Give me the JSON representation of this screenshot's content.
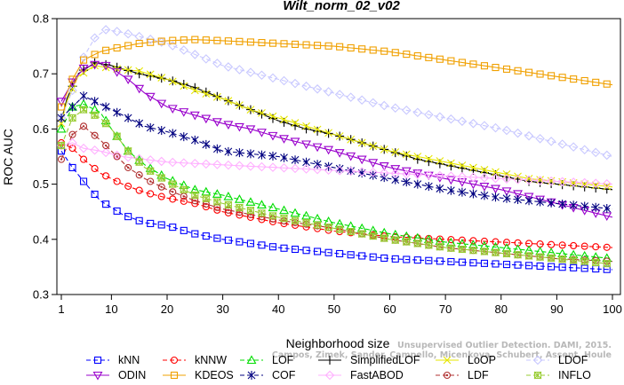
{
  "chart_data": {
    "type": "line",
    "title": "Wilt_norm_02_v02",
    "xlabel": "Neighborhood size",
    "ylabel": "ROC AUC",
    "xlim": [
      1,
      100
    ],
    "ylim": [
      0.3,
      0.8
    ],
    "xticks": [
      1,
      10,
      20,
      30,
      40,
      50,
      60,
      70,
      80,
      90,
      100
    ],
    "yticks": [
      0.3,
      0.4,
      0.5,
      0.6,
      0.7,
      0.8
    ],
    "grid": false,
    "legend_position": "bottom",
    "series": [
      {
        "name": "kNN",
        "color": "#0000ff",
        "marker": "square",
        "dash": "dashed",
        "points": [
          [
            1,
            0.56
          ],
          [
            3,
            0.53
          ],
          [
            5,
            0.505
          ],
          [
            8,
            0.47
          ],
          [
            12,
            0.445
          ],
          [
            16,
            0.43
          ],
          [
            20,
            0.425
          ],
          [
            25,
            0.41
          ],
          [
            30,
            0.4
          ],
          [
            40,
            0.385
          ],
          [
            50,
            0.375
          ],
          [
            60,
            0.365
          ],
          [
            70,
            0.36
          ],
          [
            80,
            0.355
          ],
          [
            90,
            0.35
          ],
          [
            100,
            0.345
          ]
        ]
      },
      {
        "name": "kNNW",
        "color": "#ff0000",
        "marker": "circle",
        "dash": "dashed",
        "points": [
          [
            1,
            0.575
          ],
          [
            3,
            0.565
          ],
          [
            5,
            0.545
          ],
          [
            8,
            0.52
          ],
          [
            12,
            0.5
          ],
          [
            16,
            0.485
          ],
          [
            20,
            0.475
          ],
          [
            25,
            0.465
          ],
          [
            30,
            0.45
          ],
          [
            40,
            0.43
          ],
          [
            50,
            0.415
          ],
          [
            60,
            0.405
          ],
          [
            70,
            0.4
          ],
          [
            80,
            0.395
          ],
          [
            90,
            0.39
          ],
          [
            100,
            0.385
          ]
        ]
      },
      {
        "name": "LOF",
        "color": "#00dd00",
        "marker": "triangle-up",
        "dash": "dashed",
        "points": [
          [
            1,
            0.6
          ],
          [
            3,
            0.64
          ],
          [
            5,
            0.645
          ],
          [
            8,
            0.63
          ],
          [
            10,
            0.6
          ],
          [
            13,
            0.56
          ],
          [
            16,
            0.535
          ],
          [
            20,
            0.51
          ],
          [
            25,
            0.49
          ],
          [
            30,
            0.48
          ],
          [
            40,
            0.455
          ],
          [
            50,
            0.43
          ],
          [
            60,
            0.41
          ],
          [
            70,
            0.395
          ],
          [
            80,
            0.385
          ],
          [
            90,
            0.375
          ],
          [
            100,
            0.365
          ]
        ]
      },
      {
        "name": "SimplifiedLOF",
        "color": "#000000",
        "marker": "plus",
        "dash": "solid",
        "points": [
          [
            1,
            0.615
          ],
          [
            2,
            0.655
          ],
          [
            4,
            0.7
          ],
          [
            7,
            0.72
          ],
          [
            10,
            0.715
          ],
          [
            15,
            0.7
          ],
          [
            20,
            0.69
          ],
          [
            25,
            0.675
          ],
          [
            30,
            0.655
          ],
          [
            35,
            0.635
          ],
          [
            40,
            0.615
          ],
          [
            45,
            0.6
          ],
          [
            50,
            0.59
          ],
          [
            55,
            0.575
          ],
          [
            60,
            0.56
          ],
          [
            65,
            0.545
          ],
          [
            70,
            0.535
          ],
          [
            75,
            0.525
          ],
          [
            80,
            0.515
          ],
          [
            85,
            0.505
          ],
          [
            90,
            0.5
          ],
          [
            95,
            0.495
          ],
          [
            100,
            0.49
          ]
        ]
      },
      {
        "name": "LoOP",
        "color": "#e6e600",
        "marker": "x",
        "dash": "solid",
        "points": [
          [
            1,
            0.61
          ],
          [
            2,
            0.65
          ],
          [
            4,
            0.695
          ],
          [
            7,
            0.715
          ],
          [
            10,
            0.71
          ],
          [
            15,
            0.705
          ],
          [
            20,
            0.69
          ],
          [
            25,
            0.67
          ],
          [
            30,
            0.655
          ],
          [
            35,
            0.635
          ],
          [
            40,
            0.62
          ],
          [
            45,
            0.605
          ],
          [
            50,
            0.59
          ],
          [
            55,
            0.575
          ],
          [
            60,
            0.56
          ],
          [
            65,
            0.55
          ],
          [
            70,
            0.54
          ],
          [
            75,
            0.53
          ],
          [
            80,
            0.52
          ],
          [
            85,
            0.51
          ],
          [
            90,
            0.505
          ],
          [
            95,
            0.5
          ],
          [
            100,
            0.495
          ]
        ]
      },
      {
        "name": "LDOF",
        "color": "#c8c8ff",
        "marker": "diamond",
        "dash": "dashed",
        "points": [
          [
            1,
            0.62
          ],
          [
            3,
            0.67
          ],
          [
            5,
            0.73
          ],
          [
            7,
            0.765
          ],
          [
            9,
            0.78
          ],
          [
            12,
            0.775
          ],
          [
            16,
            0.765
          ],
          [
            20,
            0.755
          ],
          [
            25,
            0.735
          ],
          [
            30,
            0.715
          ],
          [
            40,
            0.69
          ],
          [
            50,
            0.665
          ],
          [
            60,
            0.64
          ],
          [
            70,
            0.62
          ],
          [
            80,
            0.6
          ],
          [
            90,
            0.575
          ],
          [
            100,
            0.55
          ]
        ]
      },
      {
        "name": "ODIN",
        "color": "#9900cc",
        "marker": "triangle-down",
        "dash": "solid",
        "points": [
          [
            1,
            0.65
          ],
          [
            3,
            0.685
          ],
          [
            5,
            0.71
          ],
          [
            8,
            0.72
          ],
          [
            10,
            0.71
          ],
          [
            13,
            0.69
          ],
          [
            16,
            0.665
          ],
          [
            20,
            0.64
          ],
          [
            25,
            0.625
          ],
          [
            30,
            0.61
          ],
          [
            35,
            0.6
          ],
          [
            40,
            0.585
          ],
          [
            50,
            0.56
          ],
          [
            60,
            0.53
          ],
          [
            70,
            0.51
          ],
          [
            80,
            0.49
          ],
          [
            90,
            0.465
          ],
          [
            100,
            0.44
          ]
        ]
      },
      {
        "name": "KDEOS",
        "color": "#f0a000",
        "marker": "square",
        "dash": "solid",
        "points": [
          [
            1,
            0.64
          ],
          [
            3,
            0.69
          ],
          [
            5,
            0.725
          ],
          [
            8,
            0.74
          ],
          [
            10,
            0.745
          ],
          [
            15,
            0.755
          ],
          [
            20,
            0.76
          ],
          [
            25,
            0.762
          ],
          [
            30,
            0.76
          ],
          [
            40,
            0.755
          ],
          [
            50,
            0.75
          ],
          [
            60,
            0.74
          ],
          [
            70,
            0.725
          ],
          [
            80,
            0.71
          ],
          [
            90,
            0.695
          ],
          [
            100,
            0.68
          ]
        ]
      },
      {
        "name": "COF",
        "color": "#000080",
        "marker": "asterisk",
        "dash": "dashed",
        "points": [
          [
            1,
            0.62
          ],
          [
            3,
            0.64
          ],
          [
            5,
            0.66
          ],
          [
            8,
            0.645
          ],
          [
            12,
            0.625
          ],
          [
            16,
            0.605
          ],
          [
            20,
            0.595
          ],
          [
            25,
            0.58
          ],
          [
            30,
            0.56
          ],
          [
            40,
            0.55
          ],
          [
            50,
            0.53
          ],
          [
            60,
            0.51
          ],
          [
            70,
            0.49
          ],
          [
            80,
            0.475
          ],
          [
            90,
            0.465
          ],
          [
            100,
            0.455
          ]
        ]
      },
      {
        "name": "FastABOD",
        "color": "#ffb0ff",
        "marker": "diamond",
        "dash": "solid",
        "points": [
          [
            1,
            0.57
          ],
          [
            3,
            0.575
          ],
          [
            5,
            0.565
          ],
          [
            8,
            0.56
          ],
          [
            12,
            0.55
          ],
          [
            16,
            0.545
          ],
          [
            20,
            0.54
          ],
          [
            30,
            0.535
          ],
          [
            40,
            0.53
          ],
          [
            50,
            0.525
          ],
          [
            60,
            0.52
          ],
          [
            70,
            0.515
          ],
          [
            80,
            0.51
          ],
          [
            90,
            0.505
          ],
          [
            100,
            0.5
          ]
        ]
      },
      {
        "name": "LDF",
        "color": "#b03030",
        "marker": "circle-dot",
        "dash": "dashed",
        "points": [
          [
            1,
            0.545
          ],
          [
            3,
            0.59
          ],
          [
            5,
            0.605
          ],
          [
            8,
            0.58
          ],
          [
            10,
            0.56
          ],
          [
            13,
            0.53
          ],
          [
            16,
            0.51
          ],
          [
            20,
            0.49
          ],
          [
            25,
            0.47
          ],
          [
            30,
            0.455
          ],
          [
            40,
            0.435
          ],
          [
            50,
            0.42
          ],
          [
            60,
            0.4
          ],
          [
            70,
            0.385
          ],
          [
            80,
            0.375
          ],
          [
            90,
            0.365
          ],
          [
            100,
            0.36
          ]
        ]
      },
      {
        "name": "INFLO",
        "color": "#99cc33",
        "marker": "star-box",
        "dash": "dashed",
        "points": [
          [
            1,
            0.57
          ],
          [
            3,
            0.62
          ],
          [
            5,
            0.635
          ],
          [
            8,
            0.62
          ],
          [
            10,
            0.6
          ],
          [
            13,
            0.56
          ],
          [
            16,
            0.53
          ],
          [
            20,
            0.505
          ],
          [
            25,
            0.48
          ],
          [
            30,
            0.465
          ],
          [
            40,
            0.44
          ],
          [
            50,
            0.42
          ],
          [
            60,
            0.4
          ],
          [
            70,
            0.385
          ],
          [
            80,
            0.375
          ],
          [
            90,
            0.365
          ],
          [
            100,
            0.355
          ]
        ]
      }
    ],
    "legend_rows": [
      [
        "kNN",
        "kNNW",
        "LOF",
        "SimplifiedLOF",
        "LoOP",
        "LDOF"
      ],
      [
        "ODIN",
        "KDEOS",
        "COF",
        "FastABOD",
        "LDF",
        "INFLO"
      ]
    ]
  },
  "watermark": {
    "line1": "Unsupervised Outlier Detection. DAMI, 2015.",
    "line2": "Campos, Zimek, Sander, Campello, Micenkova, Schubert, Assent, Houle"
  }
}
